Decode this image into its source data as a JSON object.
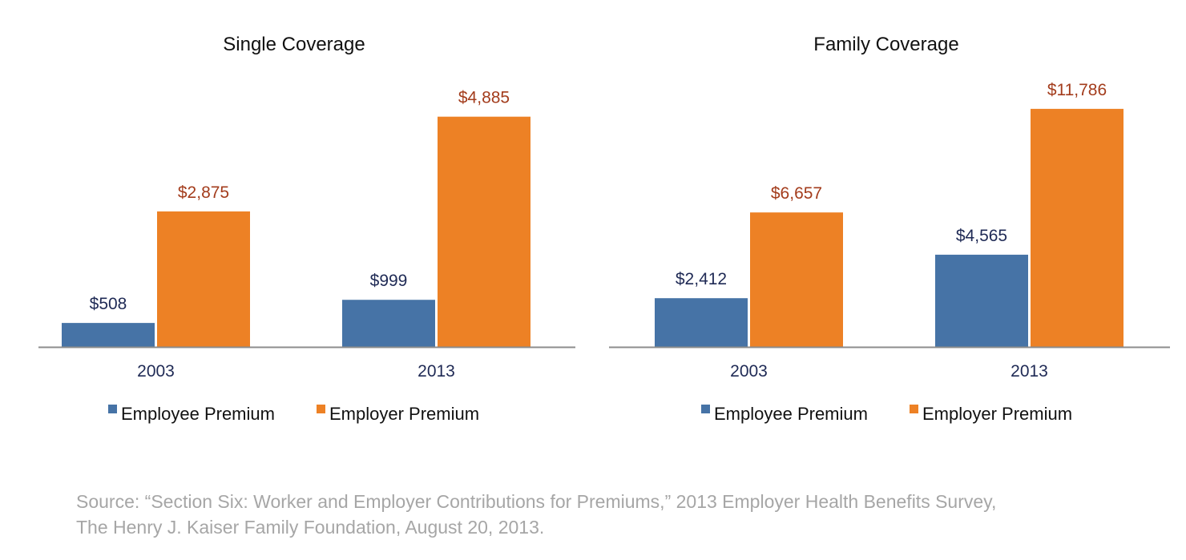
{
  "chart_data": [
    {
      "type": "bar",
      "title": "Single Coverage",
      "categories": [
        "2003",
        "2013"
      ],
      "series": [
        {
          "name": "Employee Premium",
          "values": [
            508,
            999
          ],
          "labels": [
            "$508",
            "$999"
          ]
        },
        {
          "name": "Employer Premium",
          "values": [
            2875,
            4885
          ],
          "labels": [
            "$2,875",
            "$4,885"
          ]
        }
      ],
      "ylim": [
        0,
        5100
      ],
      "grid": false,
      "legend": "bottom"
    },
    {
      "type": "bar",
      "title": "Family Coverage",
      "categories": [
        "2003",
        "2013"
      ],
      "series": [
        {
          "name": "Employee Premium",
          "values": [
            2412,
            4565
          ],
          "labels": [
            "$2,412",
            "$4,565"
          ]
        },
        {
          "name": "Employer Premium",
          "values": [
            6657,
            11786
          ],
          "labels": [
            "$6,657",
            "$11,786"
          ]
        }
      ],
      "ylim": [
        0,
        11900
      ],
      "grid": false,
      "legend": "bottom"
    }
  ],
  "colors": {
    "employee": "#4673a6",
    "employer": "#ed8125"
  },
  "source": {
    "line1": "Source: “Section Six: Worker and Employer Contributions for Premiums,” 2013 Employer Health Benefits Survey,",
    "line2": "The Henry J. Kaiser Family Foundation, August 20, 2013."
  }
}
